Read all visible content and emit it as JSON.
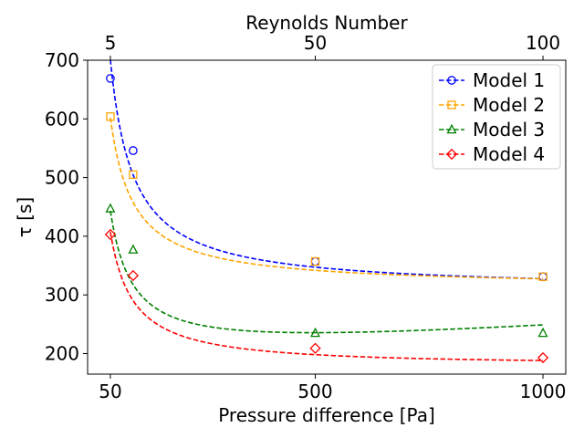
{
  "chart_data": {
    "type": "line",
    "title": "",
    "xlabel": "Pressure difference [Pa]",
    "ylabel": "τ [s]",
    "secondary_xlabel": "Reynolds Number",
    "xlim": [
      0,
      1050
    ],
    "ylim": [
      165,
      700
    ],
    "x_ticks": [
      50,
      500,
      1000
    ],
    "x_tick_labels": [
      "50",
      "500",
      "1000"
    ],
    "secondary_x_ticks": [
      50,
      500,
      1000
    ],
    "secondary_x_tick_labels": [
      "5",
      "50",
      "100"
    ],
    "y_ticks": [
      200,
      300,
      400,
      500,
      600,
      700
    ],
    "y_tick_labels": [
      "200",
      "300",
      "400",
      "500",
      "600",
      "700"
    ],
    "grid": false,
    "legend_position": "top-right",
    "x": [
      50,
      100,
      500,
      1000
    ],
    "series": [
      {
        "name": "Model 1",
        "color": "#0000ff",
        "marker": "circle",
        "linestyle": "dashed",
        "values": [
          669,
          546,
          357,
          331
        ],
        "fit_curve": {
          "a": 308,
          "b": 19650,
          "c": 0
        }
      },
      {
        "name": "Model 2",
        "color": "#ffa500",
        "marker": "square",
        "linestyle": "dashed",
        "values": [
          604,
          505,
          357,
          331
        ],
        "fit_curve": {
          "a": 313,
          "b": 14450,
          "c": 0
        }
      },
      {
        "name": "Model 3",
        "color": "#008000",
        "marker": "triangle",
        "linestyle": "dashed",
        "values": [
          447,
          377,
          235,
          235
        ],
        "fit_curve": {
          "a": 183.9,
          "b": 12840,
          "c": 0.0522
        }
      },
      {
        "name": "Model 4",
        "color": "#ff0000",
        "marker": "diamond",
        "linestyle": "dashed",
        "values": [
          403,
          333,
          209,
          193
        ],
        "fit_curve": {
          "a": 173,
          "b": 11690,
          "c": 0.0035
        }
      }
    ]
  }
}
